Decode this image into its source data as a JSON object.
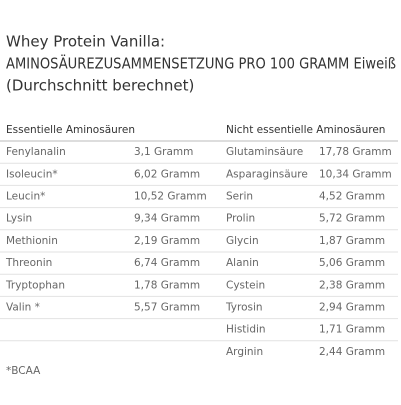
{
  "header": {
    "title": "Whey Protein Vanilla:",
    "subtitle": "AMINOSÄUREZUSAMMENSETZUNG PRO 100 GRAMM Eiweiß",
    "note": "(Durchschnitt berechnet)"
  },
  "table": {
    "left": {
      "heading": "Essentielle Aminosäuren",
      "rows": [
        [
          "Fenylanalin",
          "3,1 Gramm"
        ],
        [
          "Isoleucin*",
          "6,02 Gramm"
        ],
        [
          "Leucin*",
          "10,52 Gramm"
        ],
        [
          "Lysin",
          "9,34 Gramm"
        ],
        [
          "Methionin",
          "2,19 Gramm"
        ],
        [
          "Threonin",
          "6,74 Gramm"
        ],
        [
          "Tryptophan",
          "1,78 Gramm"
        ],
        [
          "Valin *",
          "5,57 Gramm"
        ]
      ]
    },
    "right": {
      "heading": "Nicht essentielle Aminosäuren",
      "rows": [
        [
          "Glutaminsäure",
          "17,78 Gramm"
        ],
        [
          "Asparaginsäure",
          "10,34 Gramm"
        ],
        [
          "Serin",
          "4,52 Gramm"
        ],
        [
          "Prolin",
          "5,72 Gramm"
        ],
        [
          "Glycin",
          "1,87 Gramm"
        ],
        [
          "Alanin",
          "5,06 Gramm"
        ],
        [
          "Cystein",
          "2,38 Gramm"
        ],
        [
          "Tyrosin",
          "2,94 Gramm"
        ],
        [
          "Histidin",
          "1,71 Gramm"
        ],
        [
          "Arginin",
          "2,44 Gramm"
        ]
      ]
    }
  },
  "footnote": "*BCAA"
}
